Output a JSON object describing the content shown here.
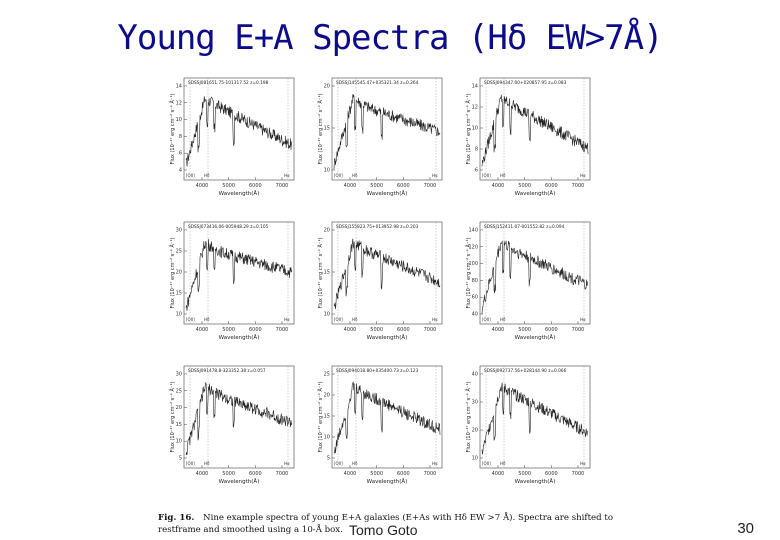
{
  "slide": {
    "title": "Young E+A Spectra (Hδ EW>7Å)",
    "author": "Tomo Goto",
    "page_number": "30"
  },
  "figure": {
    "caption_label": "Fig. 16.",
    "caption_text": "Nine example spectra of young E+A galaxies (E+As with Hδ EW >7 Å). Spectra are shifted to restframe and smoothed using a 10-Å box.",
    "axis_xlabel": "Wavelength(Å)",
    "axis_ylabel": "Flux (10⁻¹⁷ erg cm⁻² s⁻¹ Å⁻¹)",
    "line_labels": [
      "[OII]",
      "Hδ",
      "Hα"
    ],
    "panels": [
      {
        "id": "SDSSJ081651.75-101317.52 z=0.198",
        "xticks": [
          "4000",
          "5000",
          "6000",
          "7000"
        ],
        "yticks": [
          "4",
          "6",
          "8",
          "10",
          "12",
          "14"
        ]
      },
      {
        "id": "SDSSJ145545.47+035321.34 z=0.264",
        "xticks": [
          "4000",
          "5000",
          "6000",
          "7000"
        ],
        "yticks": [
          "10",
          "15",
          "20"
        ]
      },
      {
        "id": "SDSSJ094347.00+020857.95 z=0.083",
        "xticks": [
          "4000",
          "5000",
          "6000",
          "7000"
        ],
        "yticks": [
          "6",
          "8",
          "10",
          "12",
          "14"
        ]
      },
      {
        "id": "SDSSJ073416.06-005948.29 z=0.105",
        "xticks": [
          "4000",
          "5000",
          "6000",
          "7000"
        ],
        "yticks": [
          "10",
          "15",
          "20",
          "25",
          "30"
        ]
      },
      {
        "id": "SDSSJ155823.75+013952.98 z=0.203",
        "xticks": [
          "4000",
          "5000",
          "6000",
          "7000"
        ],
        "yticks": [
          "10",
          "15",
          "20"
        ]
      },
      {
        "id": "SDSSJ152411.07-001552.82 z=0.094",
        "xticks": [
          "4000",
          "5000",
          "6000",
          "7000"
        ],
        "yticks": [
          "40",
          "60",
          "80",
          "100",
          "120",
          "140"
        ]
      },
      {
        "id": "SDSSJ091478.8-323352.38 z=0.057",
        "xticks": [
          "4000",
          "5000",
          "6000",
          "7000"
        ],
        "yticks": [
          "5",
          "10",
          "15",
          "20",
          "25",
          "30"
        ]
      },
      {
        "id": "SDSSJ094018.80+035400.73 z=0.123",
        "xticks": [
          "4000",
          "5000",
          "6000",
          "7000"
        ],
        "yticks": [
          "5",
          "10",
          "15",
          "20",
          "25"
        ]
      },
      {
        "id": "SDSSJ092737.56+028144.90 z=0.066",
        "xticks": [
          "4000",
          "5000",
          "6000",
          "7000"
        ],
        "yticks": [
          "10",
          "20",
          "30",
          "40"
        ]
      }
    ]
  }
}
